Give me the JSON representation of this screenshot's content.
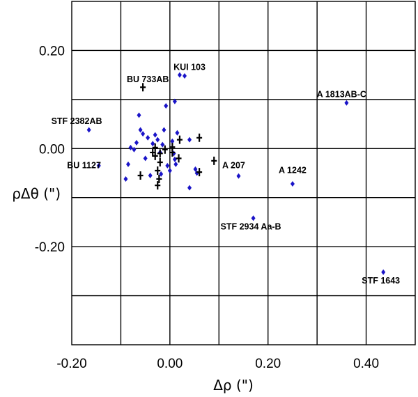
{
  "chart_data": {
    "type": "scatter",
    "xlabel": "Δρ (\")",
    "ylabel": "ρΔθ (\")",
    "xlim": [
      -0.2,
      0.5
    ],
    "ylim": [
      -0.4,
      0.3
    ],
    "xticks": [
      "-0.20",
      "0.00",
      "0.20",
      "0.40"
    ],
    "yticks": [
      "0.20",
      "0.00",
      "-0.20"
    ],
    "grid": true,
    "colors": {
      "series_a": "#1a14c8",
      "series_b": "#000000"
    },
    "series": [
      {
        "marker": "blue-diamond",
        "points": [
          [
            -0.165,
            0.038
          ],
          [
            -0.145,
            -0.035
          ],
          [
            -0.09,
            -0.062
          ],
          [
            -0.085,
            -0.032
          ],
          [
            -0.08,
            0.002
          ],
          [
            -0.073,
            -0.002
          ],
          [
            -0.068,
            0.012
          ],
          [
            -0.063,
            0.068
          ],
          [
            -0.06,
            0.038
          ],
          [
            -0.055,
            0.03
          ],
          [
            -0.05,
            -0.02
          ],
          [
            -0.045,
            0.022
          ],
          [
            -0.04,
            -0.055
          ],
          [
            -0.035,
            0.01
          ],
          [
            -0.03,
            0.028
          ],
          [
            -0.025,
            0.018
          ],
          [
            -0.02,
            -0.008
          ],
          [
            -0.018,
            -0.052
          ],
          [
            -0.015,
            0.008
          ],
          [
            -0.012,
            0.038
          ],
          [
            -0.008,
            0.087
          ],
          [
            -0.005,
            -0.035
          ],
          [
            0.0,
            -0.045
          ],
          [
            0.005,
            0.015
          ],
          [
            0.008,
            -0.01
          ],
          [
            0.01,
            -0.022
          ],
          [
            0.012,
            -0.032
          ],
          [
            0.01,
            0.096
          ],
          [
            0.015,
            0.032
          ],
          [
            0.02,
            0.15
          ],
          [
            0.03,
            0.148
          ],
          [
            0.04,
            0.018
          ],
          [
            0.04,
            -0.08
          ],
          [
            0.052,
            -0.042
          ],
          [
            0.055,
            -0.05
          ],
          [
            0.14,
            -0.056
          ],
          [
            0.17,
            -0.142
          ],
          [
            0.25,
            -0.072
          ],
          [
            0.36,
            0.093
          ],
          [
            0.435,
            -0.252
          ]
        ]
      },
      {
        "marker": "black-cross",
        "points": [
          [
            -0.055,
            0.125
          ],
          [
            -0.06,
            -0.055
          ],
          [
            -0.035,
            -0.008
          ],
          [
            -0.03,
            -0.015
          ],
          [
            -0.03,
            0.002
          ],
          [
            -0.025,
            -0.045
          ],
          [
            -0.025,
            -0.075
          ],
          [
            -0.022,
            -0.062
          ],
          [
            -0.02,
            -0.028
          ],
          [
            -0.02,
            -0.01
          ],
          [
            -0.01,
            -0.002
          ],
          [
            0.005,
            0.003
          ],
          [
            0.005,
            -0.008
          ],
          [
            0.018,
            -0.02
          ],
          [
            0.02,
            0.018
          ],
          [
            0.06,
            0.022
          ],
          [
            0.06,
            -0.048
          ],
          [
            0.09,
            -0.025
          ]
        ]
      }
    ],
    "annotations": [
      {
        "text": "KUI 103",
        "x": 0.04,
        "y": 0.16
      },
      {
        "text": "BU 733AB",
        "x": -0.045,
        "y": 0.135
      },
      {
        "text": "A 1813AB-C",
        "x": 0.35,
        "y": 0.105
      },
      {
        "text": "STF 2382AB",
        "x": -0.19,
        "y": 0.05
      },
      {
        "text": "BU 1127",
        "x": -0.175,
        "y": -0.04
      },
      {
        "text": "A 207",
        "x": 0.13,
        "y": -0.04
      },
      {
        "text": "A 1242",
        "x": 0.25,
        "y": -0.05
      },
      {
        "text": "STF 2934 Aa-B",
        "x": 0.165,
        "y": -0.165
      },
      {
        "text": "STF 1643",
        "x": 0.43,
        "y": -0.275
      }
    ]
  }
}
